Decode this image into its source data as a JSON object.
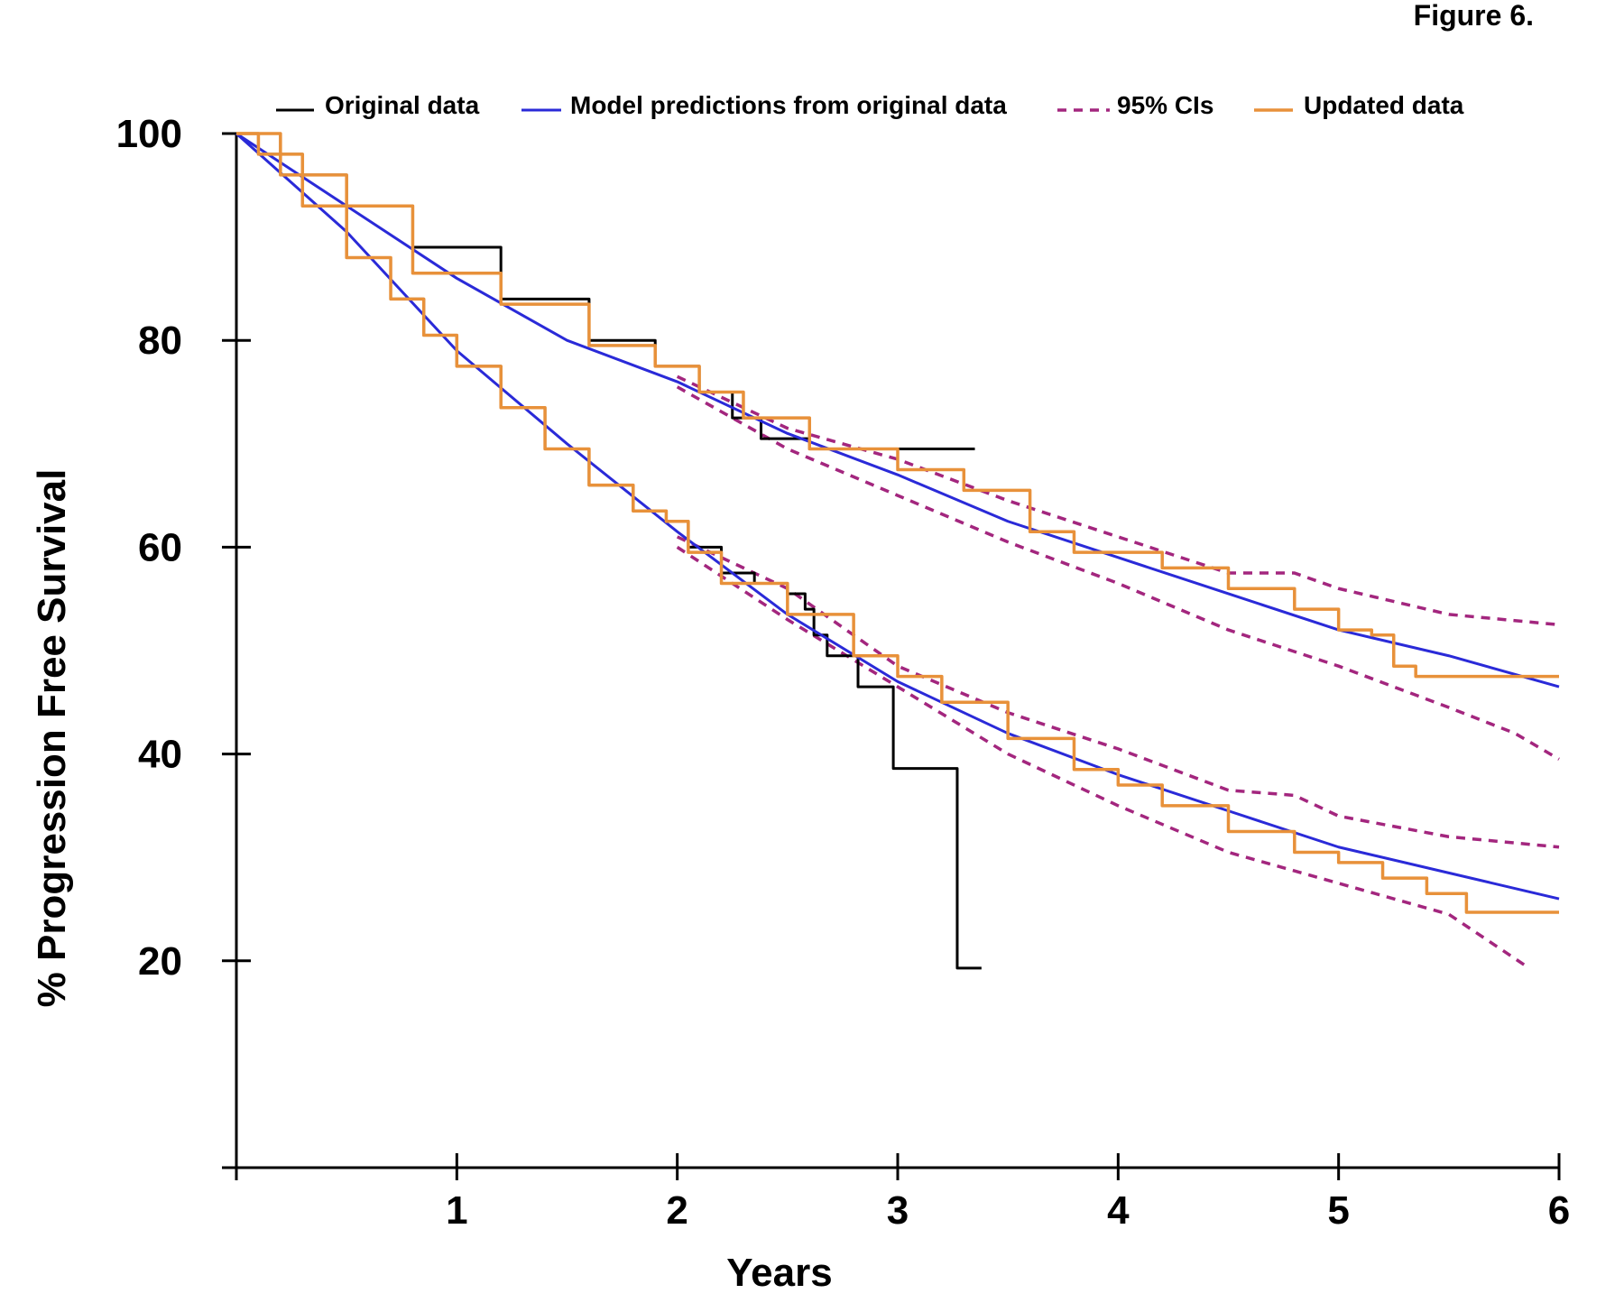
{
  "figure_label": "Figure 6.",
  "chart_data": {
    "type": "line",
    "title": "",
    "xlabel": "Years",
    "ylabel": "% Progression Free Survival",
    "xlim": [
      0,
      6
    ],
    "ylim": [
      0,
      100
    ],
    "xticks": [
      1,
      2,
      3,
      4,
      5,
      6
    ],
    "yticks": [
      20,
      40,
      60,
      80,
      100
    ],
    "grid": false,
    "legend_position": "top",
    "legend": [
      {
        "label": "Original data",
        "color": "#000000",
        "style": "solid"
      },
      {
        "label": "Model predictions from original data",
        "color": "#2a2ad8",
        "style": "solid"
      },
      {
        "label": "95% CIs",
        "color": "#a3267e",
        "style": "dashed"
      },
      {
        "label": "Updated data",
        "color": "#e8913a",
        "style": "solid"
      }
    ],
    "series": [
      {
        "group": "Original data",
        "color": "#000000",
        "style": "step",
        "x": [
          0,
          0.1,
          0.3,
          0.5,
          0.7,
          0.85,
          1.0,
          1.2,
          1.4,
          1.6,
          1.8,
          1.95,
          2.05,
          2.2,
          2.35,
          2.5,
          2.58,
          2.62,
          2.68,
          2.82,
          2.98,
          3.27,
          3.38
        ],
        "y": [
          100,
          98,
          93,
          88,
          84,
          80.5,
          77.5,
          73.5,
          69.5,
          66,
          63.5,
          62.5,
          60,
          57.5,
          56.5,
          55.5,
          54,
          51.5,
          49.5,
          46.5,
          38.6,
          19.3,
          19.3
        ]
      },
      {
        "group": "Original data",
        "color": "#000000",
        "style": "step",
        "x": [
          0,
          0.2,
          0.5,
          0.8,
          1.2,
          1.6,
          1.9,
          2.1,
          2.25,
          2.38,
          2.6,
          3.0,
          3.35
        ],
        "y": [
          100,
          96,
          93,
          89,
          84,
          80,
          77.5,
          75,
          72.5,
          70.5,
          69.5,
          69.5,
          69.5
        ]
      },
      {
        "group": "Model predictions from original data",
        "color": "#2a2ad8",
        "style": "solid",
        "x": [
          0,
          0.5,
          1,
          1.5,
          2,
          2.5,
          3,
          3.5,
          4,
          4.5,
          5,
          5.5,
          6
        ],
        "y": [
          100,
          90.5,
          79,
          70,
          61.5,
          53.5,
          47,
          42,
          38,
          34.5,
          31,
          28.5,
          26
        ]
      },
      {
        "group": "Model predictions from original data",
        "color": "#2a2ad8",
        "style": "solid",
        "x": [
          0,
          0.5,
          1,
          1.5,
          2,
          2.5,
          3,
          3.5,
          4,
          4.5,
          5,
          5.5,
          6
        ],
        "y": [
          100,
          93,
          86,
          80,
          76,
          71,
          67,
          62.5,
          59,
          55.5,
          52,
          49.5,
          46.5
        ]
      },
      {
        "group": "95% CIs",
        "color": "#a3267e",
        "style": "dashed",
        "x": [
          2,
          2.5,
          3,
          3.5,
          4,
          4.5,
          4.8,
          5,
          5.5,
          6
        ],
        "y": [
          61,
          56,
          48.5,
          44,
          40.5,
          36.5,
          36,
          34,
          32,
          31
        ]
      },
      {
        "group": "95% CIs",
        "color": "#a3267e",
        "style": "dashed",
        "x": [
          2,
          2.5,
          3,
          3.5,
          4,
          4.5,
          5,
          5.5,
          5.85
        ],
        "y": [
          60,
          53,
          46.5,
          40,
          35,
          30.5,
          27.5,
          24.5,
          19.5
        ]
      },
      {
        "group": "95% CIs",
        "color": "#a3267e",
        "style": "dashed",
        "x": [
          2,
          2.5,
          3,
          3.5,
          4,
          4.5,
          4.8,
          5,
          5.5,
          6
        ],
        "y": [
          76.5,
          71.5,
          68.5,
          64.5,
          61,
          57.5,
          57.5,
          56,
          53.5,
          52.5
        ]
      },
      {
        "group": "95% CIs",
        "color": "#a3267e",
        "style": "dashed",
        "x": [
          2,
          2.5,
          3,
          3.5,
          4,
          4.5,
          5,
          5.5,
          5.8,
          6
        ],
        "y": [
          75.5,
          69.5,
          65,
          60.5,
          56.5,
          52,
          48.5,
          44.5,
          42,
          39.5
        ]
      },
      {
        "group": "Updated data",
        "color": "#e8913a",
        "style": "step",
        "x": [
          0,
          0.1,
          0.3,
          0.5,
          0.7,
          0.85,
          1.0,
          1.2,
          1.4,
          1.6,
          1.8,
          1.95,
          2.05,
          2.2,
          2.5,
          2.8,
          3.0,
          3.2,
          3.5,
          3.8,
          4.0,
          4.2,
          4.5,
          4.8,
          5.0,
          5.2,
          5.4,
          5.58,
          6.0
        ],
        "y": [
          100,
          98,
          93,
          88,
          84,
          80.5,
          77.5,
          73.5,
          69.5,
          66,
          63.5,
          62.5,
          59.5,
          56.5,
          53.5,
          49.5,
          47.5,
          45,
          41.5,
          38.5,
          37,
          35,
          32.5,
          30.5,
          29.5,
          28,
          26.5,
          24.7,
          24.7
        ]
      },
      {
        "group": "Updated data",
        "color": "#e8913a",
        "style": "step",
        "x": [
          0,
          0.2,
          0.5,
          0.8,
          1.2,
          1.6,
          1.9,
          2.1,
          2.3,
          2.6,
          3.0,
          3.3,
          3.6,
          3.8,
          4.0,
          4.2,
          4.5,
          4.8,
          5.0,
          5.15,
          5.25,
          5.35,
          6.0
        ],
        "y": [
          100,
          96,
          93,
          86.5,
          83.5,
          79.5,
          77.5,
          75,
          72.5,
          69.5,
          67.5,
          65.5,
          61.5,
          59.5,
          59.5,
          58,
          56,
          54,
          52,
          51.5,
          48.5,
          47.5,
          47.5
        ]
      }
    ]
  }
}
